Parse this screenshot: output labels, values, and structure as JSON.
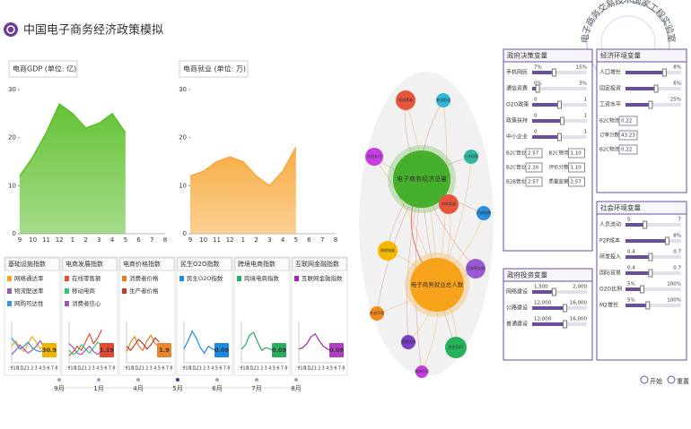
{
  "header": {
    "title": "中国电子商务经济政策模拟"
  },
  "watermark": "电子商务交易技术国家工程实验室",
  "main_charts": [
    {
      "title": "电商GDP (单位: 亿)",
      "color": "#5cbf2a",
      "x": [
        "9",
        "10",
        "11",
        "12",
        "1",
        "2",
        "3",
        "4",
        "5",
        "6",
        "7",
        "8"
      ],
      "values": [
        12,
        16,
        21,
        27,
        25,
        22,
        23,
        25,
        21,
        null,
        null,
        null
      ],
      "ylim": [
        0,
        30
      ],
      "yticks": [
        0,
        10,
        20,
        30
      ]
    },
    {
      "title": "电商就业 (单位: 万)",
      "color": "#f7a83a",
      "x": [
        "9",
        "10",
        "11",
        "12",
        "1",
        "2",
        "3",
        "4",
        "5",
        "6",
        "7",
        "8"
      ],
      "values": [
        12,
        13,
        15,
        16,
        15,
        12,
        10,
        13,
        18,
        null,
        null,
        null
      ],
      "ylim": [
        0,
        30
      ],
      "yticks": [
        0,
        10,
        20,
        30
      ]
    }
  ],
  "index_x": [
    "9",
    "10",
    "11",
    "12",
    "1",
    "2",
    "3",
    "4",
    "5",
    "6",
    "7",
    "8"
  ],
  "index_ylim": [
    0,
    3
  ],
  "index_panels": [
    {
      "title": "基础设施指数",
      "value_label": "30.9",
      "color": "#f0b400",
      "series": [
        {
          "name": "网络通达率",
          "color": "#f5a623",
          "values": [
            1.2,
            1.6,
            1.1,
            0.8,
            1.4,
            1.9,
            1.5,
            1.0,
            1.3,
            null,
            null,
            null
          ]
        },
        {
          "name": "物流配送率",
          "color": "#9b59b6",
          "values": [
            0.6,
            0.9,
            1.3,
            1.0,
            0.7,
            0.9,
            1.2,
            1.6,
            1.1,
            null,
            null,
            null
          ]
        },
        {
          "name": "网购可达性",
          "color": "#3498db",
          "values": [
            1.8,
            1.4,
            1.0,
            1.2,
            1.5,
            1.1,
            0.9,
            0.8,
            1.0,
            null,
            null,
            null
          ]
        }
      ]
    },
    {
      "title": "电商发展指数",
      "value_label": "1.19",
      "color": "#e2492f",
      "series": [
        {
          "name": "在线零售额",
          "color": "#e74c3c",
          "values": [
            0.5,
            0.8,
            1.2,
            0.9,
            1.5,
            2.1,
            1.4,
            1.8,
            2.4,
            null,
            null,
            null
          ]
        },
        {
          "name": "移动电商",
          "color": "#2ecc71",
          "values": [
            0.9,
            0.6,
            0.8,
            1.3,
            1.0,
            0.7,
            1.1,
            1.5,
            1.2,
            null,
            null,
            null
          ]
        },
        {
          "name": "消费者信心",
          "color": "#9b59b6",
          "values": [
            1.4,
            1.1,
            0.7,
            0.6,
            0.9,
            1.2,
            0.8,
            0.6,
            0.9,
            null,
            null,
            null
          ]
        }
      ]
    },
    {
      "title": "电商价格指数",
      "value_label": "1.9",
      "color": "#e9862a",
      "series": [
        {
          "name": "消费者价格",
          "color": "#e67e22",
          "values": [
            0.8,
            1.5,
            1.9,
            1.2,
            0.9,
            1.6,
            2.0,
            1.4,
            1.2,
            null,
            null,
            null
          ]
        },
        {
          "name": "生产者价格",
          "color": "#c0392b",
          "values": [
            1.2,
            0.9,
            1.3,
            1.7,
            1.4,
            1.0,
            1.3,
            1.8,
            1.5,
            null,
            null,
            null
          ]
        }
      ]
    },
    {
      "title": "民生O2O指数",
      "value_label": "0.09",
      "color": "#1e88e5",
      "series": [
        {
          "name": "民生O2O指数",
          "color": "#1e88e5",
          "values": [
            1.0,
            1.6,
            2.3,
            1.8,
            1.1,
            0.7,
            1.2,
            1.0,
            0.9,
            null,
            null,
            null
          ]
        }
      ]
    },
    {
      "title": "跨境电商指数",
      "value_label": "0.09",
      "color": "#27ae60",
      "series": [
        {
          "name": "跨境电商指数",
          "color": "#27ae60",
          "values": [
            1.0,
            1.3,
            2.0,
            2.2,
            1.5,
            0.9,
            1.1,
            1.0,
            0.9,
            null,
            null,
            null
          ]
        }
      ]
    },
    {
      "title": "互联网金融指数",
      "value_label": "0.09",
      "color": "#b23cc8",
      "series": [
        {
          "name": "互联网金融指数",
          "color": "#9c27b0",
          "values": [
            1.0,
            1.1,
            1.4,
            1.9,
            2.1,
            1.6,
            1.2,
            1.0,
            0.9,
            null,
            null,
            null
          ]
        }
      ]
    }
  ],
  "timeline": [
    "9月",
    "1月",
    "4月",
    "5月",
    "6月",
    "7月",
    "8月"
  ],
  "network": {
    "centers": [
      {
        "label": "电子商务经济总量",
        "color": "#46b02c"
      },
      {
        "label": "电子商务就业总人数",
        "color": "#f7a21b"
      }
    ],
    "nodes": [
      {
        "label": "网络基础",
        "color": "#e8553d"
      },
      {
        "label": "物流配送",
        "color": "#2fb7d6"
      },
      {
        "label": "在线支付",
        "color": "#c53ee0"
      },
      {
        "label": "电商发展",
        "color": "#e8553d"
      },
      {
        "label": "价格指数",
        "color": "#2a8de0"
      },
      {
        "label": "跨境电商",
        "color": "#f5b800"
      },
      {
        "label": "互联网金融",
        "color": "#9b59d6"
      },
      {
        "label": "民生O2O",
        "color": "#26b15a"
      },
      {
        "label": "政策扶持",
        "color": "#7b3fc4"
      },
      {
        "label": "社会环境",
        "color": "#f08a1c"
      },
      {
        "label": "政府投资",
        "color": "#c53ee0"
      },
      {
        "label": "人才培养",
        "color": "#2fb7a0"
      }
    ]
  },
  "panels": [
    {
      "title": "政府决策变量",
      "rows": [
        {
          "label": "手机网民",
          "level": 40,
          "texts": [
            "7%",
            "15%"
          ]
        },
        {
          "label": "通信资费",
          "level": 10,
          "texts": [
            "0%",
            "3%"
          ]
        },
        {
          "label": "O2O政策",
          "level": 50,
          "texts": [
            "0",
            "1"
          ]
        },
        {
          "label": "政策扶持",
          "level": 55,
          "texts": [
            "0",
            "1"
          ]
        },
        {
          "label": "中小企业",
          "level": 50,
          "texts": [
            "0",
            "1"
          ]
        }
      ],
      "inputs": [
        [
          "B2C营业",
          "2.57"
        ],
        [
          "B2C物流",
          "1.10"
        ],
        [
          "B2C营业",
          "2.10"
        ],
        [
          "评价分数",
          "1.10"
        ],
        [
          "B2B营业",
          "2.57"
        ],
        [
          "质量监管",
          "2.57"
        ]
      ]
    },
    {
      "title": "经济环境变量",
      "rows": [
        {
          "label": "人口增长",
          "level": 70,
          "texts": [
            "8%"
          ]
        },
        {
          "label": "固定投资",
          "level": 55,
          "texts": [
            "6%"
          ]
        },
        {
          "label": "工资水平",
          "level": 45,
          "texts": [
            "25%"
          ]
        }
      ],
      "inputs": [
        [
          "B2C物流",
          "0.22"
        ],
        [
          "订单分数",
          "43.23"
        ],
        [
          "B2C物流",
          "0.22"
        ]
      ]
    },
    {
      "title": "政府投资变量",
      "rows": [
        {
          "label": "网络建设",
          "level": 40,
          "texts": [
            "1,500",
            "2,000"
          ]
        },
        {
          "label": "公路建设",
          "level": 60,
          "texts": [
            "12,000",
            "16,000"
          ]
        },
        {
          "label": "普通建设",
          "level": 60,
          "texts": [
            "12,000",
            "16,000"
          ]
        }
      ],
      "inputs": []
    },
    {
      "title": "社会环境变量",
      "rows": [
        {
          "label": "人员流动",
          "level": 35,
          "texts": [
            "5",
            "7"
          ]
        },
        {
          "label": "P2P成本",
          "level": 75,
          "texts": [
            "8%"
          ]
        },
        {
          "label": "研发投入",
          "level": 45,
          "texts": [
            "0.4",
            "0.7"
          ]
        },
        {
          "label": "国际贸易",
          "level": 45,
          "texts": [
            "0.4",
            "0.7"
          ]
        },
        {
          "label": "O2O比例",
          "level": 30,
          "texts": [
            "5%",
            "100%"
          ]
        },
        {
          "label": "M2增长",
          "level": 40,
          "texts": [
            "5%",
            "100%"
          ]
        }
      ],
      "inputs": []
    }
  ],
  "buttons": [
    "开始",
    "重置"
  ]
}
